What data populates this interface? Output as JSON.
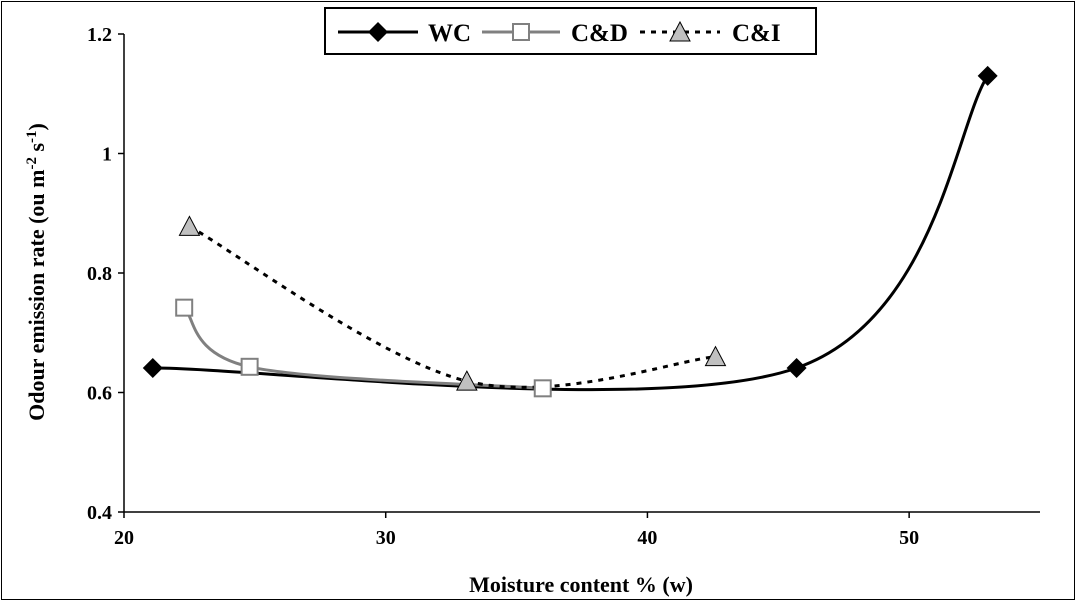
{
  "chart_data": {
    "type": "line",
    "xlabel": "Moisture content % (w)",
    "ylabel_main": "Odour emission rate (ou m",
    "ylabel_exp1": "-2",
    "ylabel_mid": " s",
    "ylabel_exp2": "-1",
    "ylabel_end": ")",
    "xlim": [
      20,
      55
    ],
    "ylim": [
      0.4,
      1.2
    ],
    "x_ticks": [
      20,
      30,
      40,
      50
    ],
    "x_tick_labels": [
      "20",
      "30",
      "40",
      "50"
    ],
    "y_ticks": [
      0.4,
      0.6,
      0.8,
      1.0,
      1.2
    ],
    "y_tick_labels": [
      "0.4",
      "0.6",
      "0.8",
      "1",
      "1.2"
    ],
    "grid": false,
    "legend_position": "top-center",
    "series": [
      {
        "name": "WC",
        "marker": "diamond",
        "line_style": "solid",
        "color": "#000000",
        "marker_fill": "#000000",
        "x": [
          21.1,
          45.7,
          53.0
        ],
        "y": [
          0.641,
          0.641,
          1.13
        ]
      },
      {
        "name": "C&D",
        "marker": "square",
        "line_style": "solid",
        "color": "#808080",
        "marker_fill": "#ffffff",
        "x": [
          22.3,
          24.8,
          36.0
        ],
        "y": [
          0.742,
          0.643,
          0.607
        ]
      },
      {
        "name": "C&I",
        "marker": "triangle",
        "line_style": "dotted",
        "color": "#000000",
        "marker_fill": "#c0c0c0",
        "x": [
          22.5,
          33.1,
          42.6
        ],
        "y": [
          0.878,
          0.619,
          0.66
        ]
      }
    ]
  }
}
